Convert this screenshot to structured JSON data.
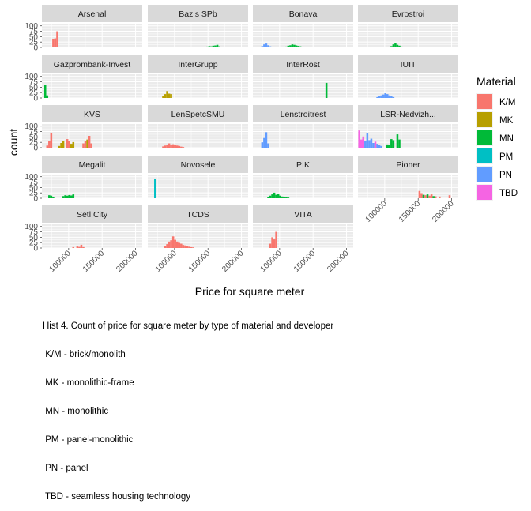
{
  "chart_data": {
    "type": "bar",
    "title": "",
    "xlabel": "Price for square meter",
    "ylabel": "count",
    "xlim": [
      60000,
      210000
    ],
    "ylim": [
      0,
      110
    ],
    "x_ticks": [
      100000,
      150000,
      200000
    ],
    "x_tick_labels": [
      "100000",
      "150000",
      "200000"
    ],
    "y_ticks": [
      0,
      25,
      50,
      75,
      100
    ],
    "y_tick_labels": [
      "0",
      "25",
      "50",
      "75",
      "100"
    ],
    "bin_width": 3000,
    "grid": true,
    "legend": {
      "title": "Material",
      "position": "right",
      "entries": [
        {
          "key": "K/M",
          "label": "K/M",
          "color": "#F8766D"
        },
        {
          "key": "MK",
          "label": "MK",
          "color": "#B79F00"
        },
        {
          "key": "MN",
          "label": "MN",
          "color": "#00BA38"
        },
        {
          "key": "PM",
          "label": "PM",
          "color": "#00BFC4"
        },
        {
          "key": "PN",
          "label": "PN",
          "color": "#619CFF"
        },
        {
          "key": "TBD",
          "label": "TBD",
          "color": "#F564E3"
        }
      ]
    },
    "panels": [
      {
        "name": "Arsenal",
        "bars": [
          {
            "x": 77000,
            "y": 38,
            "m": "K/M"
          },
          {
            "x": 80000,
            "y": 42,
            "m": "K/M"
          },
          {
            "x": 83000,
            "y": 75,
            "m": "K/M"
          }
        ]
      },
      {
        "name": "Bazis SPb",
        "bars": [
          {
            "x": 149000,
            "y": 4,
            "m": "MN"
          },
          {
            "x": 152000,
            "y": 6,
            "m": "MN"
          },
          {
            "x": 155000,
            "y": 5,
            "m": "MN"
          },
          {
            "x": 158000,
            "y": 8,
            "m": "MN"
          },
          {
            "x": 161000,
            "y": 9,
            "m": "MN"
          },
          {
            "x": 164000,
            "y": 12,
            "m": "MN"
          },
          {
            "x": 167000,
            "y": 5,
            "m": "MN"
          },
          {
            "x": 170000,
            "y": 3,
            "m": "MN"
          }
        ]
      },
      {
        "name": "Bonava",
        "bars": [
          {
            "x": 74000,
            "y": 6,
            "m": "PN"
          },
          {
            "x": 77000,
            "y": 14,
            "m": "PN"
          },
          {
            "x": 80000,
            "y": 18,
            "m": "PN"
          },
          {
            "x": 83000,
            "y": 10,
            "m": "PN"
          },
          {
            "x": 86000,
            "y": 5,
            "m": "PN"
          },
          {
            "x": 89000,
            "y": 3,
            "m": "PN"
          },
          {
            "x": 110000,
            "y": 4,
            "m": "MN"
          },
          {
            "x": 113000,
            "y": 8,
            "m": "MN"
          },
          {
            "x": 116000,
            "y": 10,
            "m": "MN"
          },
          {
            "x": 119000,
            "y": 14,
            "m": "MN"
          },
          {
            "x": 122000,
            "y": 12,
            "m": "MN"
          },
          {
            "x": 125000,
            "y": 9,
            "m": "MN"
          },
          {
            "x": 128000,
            "y": 7,
            "m": "MN"
          },
          {
            "x": 131000,
            "y": 5,
            "m": "MN"
          },
          {
            "x": 134000,
            "y": 3,
            "m": "MN"
          }
        ]
      },
      {
        "name": "Evrostroi",
        "bars": [
          {
            "x": 110000,
            "y": 6,
            "m": "MN"
          },
          {
            "x": 113000,
            "y": 14,
            "m": "MN"
          },
          {
            "x": 116000,
            "y": 20,
            "m": "MN"
          },
          {
            "x": 119000,
            "y": 12,
            "m": "MN"
          },
          {
            "x": 122000,
            "y": 8,
            "m": "MN"
          },
          {
            "x": 125000,
            "y": 4,
            "m": "MN"
          },
          {
            "x": 140000,
            "y": 3,
            "m": "MN"
          }
        ]
      },
      {
        "name": "Gazprombank-Invest",
        "bars": [
          {
            "x": 65000,
            "y": 62,
            "m": "MN"
          },
          {
            "x": 68000,
            "y": 12,
            "m": "MN"
          }
        ]
      },
      {
        "name": "InterGrupp",
        "bars": [
          {
            "x": 83000,
            "y": 10,
            "m": "MK"
          },
          {
            "x": 86000,
            "y": 18,
            "m": "MK"
          },
          {
            "x": 89000,
            "y": 32,
            "m": "MK"
          },
          {
            "x": 92000,
            "y": 20,
            "m": "MK"
          },
          {
            "x": 95000,
            "y": 18,
            "m": "MK"
          }
        ]
      },
      {
        "name": "InterRost",
        "bars": [
          {
            "x": 170000,
            "y": 70,
            "m": "MN"
          }
        ]
      },
      {
        "name": "IUIT",
        "bars": [
          {
            "x": 89000,
            "y": 4,
            "m": "PN"
          },
          {
            "x": 92000,
            "y": 8,
            "m": "PN"
          },
          {
            "x": 95000,
            "y": 12,
            "m": "PN"
          },
          {
            "x": 98000,
            "y": 16,
            "m": "PN"
          },
          {
            "x": 101000,
            "y": 22,
            "m": "PN"
          },
          {
            "x": 104000,
            "y": 18,
            "m": "PN"
          },
          {
            "x": 107000,
            "y": 12,
            "m": "PN"
          },
          {
            "x": 110000,
            "y": 8,
            "m": "PN"
          },
          {
            "x": 113000,
            "y": 4,
            "m": "PN"
          }
        ]
      },
      {
        "name": "KVS",
        "bars": [
          {
            "x": 68000,
            "y": 10,
            "m": "K/M"
          },
          {
            "x": 71000,
            "y": 30,
            "m": "K/M"
          },
          {
            "x": 74000,
            "y": 70,
            "m": "K/M"
          },
          {
            "x": 86000,
            "y": 8,
            "m": "MK"
          },
          {
            "x": 89000,
            "y": 22,
            "m": "MK"
          },
          {
            "x": 92000,
            "y": 30,
            "m": "MK"
          },
          {
            "x": 98000,
            "y": 40,
            "m": "K/M"
          },
          {
            "x": 101000,
            "y": 32,
            "m": "K/M"
          },
          {
            "x": 104000,
            "y": 18,
            "m": "MK"
          },
          {
            "x": 107000,
            "y": 26,
            "m": "MK"
          },
          {
            "x": 122000,
            "y": 20,
            "m": "K/M"
          },
          {
            "x": 125000,
            "y": 30,
            "m": "K/M"
          },
          {
            "x": 128000,
            "y": 38,
            "m": "MK"
          },
          {
            "x": 131000,
            "y": 55,
            "m": "K/M"
          },
          {
            "x": 134000,
            "y": 20,
            "m": "K/M"
          }
        ]
      },
      {
        "name": "LenSpetcSMU",
        "bars": [
          {
            "x": 83000,
            "y": 6,
            "m": "K/M"
          },
          {
            "x": 86000,
            "y": 10,
            "m": "K/M"
          },
          {
            "x": 89000,
            "y": 14,
            "m": "K/M"
          },
          {
            "x": 92000,
            "y": 20,
            "m": "K/M"
          },
          {
            "x": 95000,
            "y": 14,
            "m": "K/M"
          },
          {
            "x": 98000,
            "y": 16,
            "m": "K/M"
          },
          {
            "x": 101000,
            "y": 12,
            "m": "K/M"
          },
          {
            "x": 104000,
            "y": 10,
            "m": "K/M"
          },
          {
            "x": 107000,
            "y": 8,
            "m": "K/M"
          },
          {
            "x": 110000,
            "y": 5,
            "m": "K/M"
          },
          {
            "x": 113000,
            "y": 3,
            "m": "K/M"
          }
        ]
      },
      {
        "name": "Lenstroitrest",
        "bars": [
          {
            "x": 74000,
            "y": 25,
            "m": "PN"
          },
          {
            "x": 77000,
            "y": 45,
            "m": "PN"
          },
          {
            "x": 80000,
            "y": 72,
            "m": "PN"
          },
          {
            "x": 83000,
            "y": 20,
            "m": "PN"
          }
        ]
      },
      {
        "name": "LSR-Nedvizh...",
        "bars": [
          {
            "x": 62000,
            "y": 80,
            "m": "TBD"
          },
          {
            "x": 65000,
            "y": 38,
            "m": "TBD"
          },
          {
            "x": 68000,
            "y": 52,
            "m": "TBD"
          },
          {
            "x": 71000,
            "y": 30,
            "m": "PN"
          },
          {
            "x": 74000,
            "y": 68,
            "m": "PN"
          },
          {
            "x": 77000,
            "y": 35,
            "m": "PN"
          },
          {
            "x": 80000,
            "y": 42,
            "m": "PN"
          },
          {
            "x": 83000,
            "y": 22,
            "m": "PN"
          },
          {
            "x": 86000,
            "y": 28,
            "m": "TBD"
          },
          {
            "x": 89000,
            "y": 18,
            "m": "PN"
          },
          {
            "x": 92000,
            "y": 12,
            "m": "PN"
          },
          {
            "x": 95000,
            "y": 8,
            "m": "PN"
          },
          {
            "x": 104000,
            "y": 15,
            "m": "MN"
          },
          {
            "x": 107000,
            "y": 12,
            "m": "MN"
          },
          {
            "x": 110000,
            "y": 40,
            "m": "MN"
          },
          {
            "x": 113000,
            "y": 35,
            "m": "MN"
          },
          {
            "x": 119000,
            "y": 62,
            "m": "MN"
          },
          {
            "x": 122000,
            "y": 38,
            "m": "MN"
          }
        ]
      },
      {
        "name": "Megalit",
        "bars": [
          {
            "x": 71000,
            "y": 14,
            "m": "MN"
          },
          {
            "x": 74000,
            "y": 12,
            "m": "MN"
          },
          {
            "x": 77000,
            "y": 6,
            "m": "MN"
          },
          {
            "x": 92000,
            "y": 10,
            "m": "MN"
          },
          {
            "x": 95000,
            "y": 14,
            "m": "MN"
          },
          {
            "x": 98000,
            "y": 12,
            "m": "MN"
          },
          {
            "x": 101000,
            "y": 15,
            "m": "MN"
          },
          {
            "x": 104000,
            "y": 13,
            "m": "MN"
          },
          {
            "x": 107000,
            "y": 18,
            "m": "MN"
          }
        ]
      },
      {
        "name": "Novosele",
        "bars": [
          {
            "x": 71000,
            "y": 88,
            "m": "PM"
          }
        ]
      },
      {
        "name": "PIK",
        "bars": [
          {
            "x": 83000,
            "y": 6,
            "m": "MN"
          },
          {
            "x": 86000,
            "y": 12,
            "m": "MN"
          },
          {
            "x": 89000,
            "y": 18,
            "m": "MN"
          },
          {
            "x": 92000,
            "y": 26,
            "m": "MN"
          },
          {
            "x": 95000,
            "y": 16,
            "m": "MN"
          },
          {
            "x": 98000,
            "y": 20,
            "m": "MN"
          },
          {
            "x": 101000,
            "y": 12,
            "m": "MN"
          },
          {
            "x": 104000,
            "y": 8,
            "m": "MN"
          },
          {
            "x": 107000,
            "y": 6,
            "m": "MN"
          },
          {
            "x": 110000,
            "y": 4,
            "m": "MN"
          },
          {
            "x": 113000,
            "y": 3,
            "m": "MN"
          }
        ]
      },
      {
        "name": "Pioner",
        "bars": [
          {
            "x": 152000,
            "y": 34,
            "m": "K/M"
          },
          {
            "x": 155000,
            "y": 24,
            "m": "K/M"
          },
          {
            "x": 158000,
            "y": 16,
            "m": "MN"
          },
          {
            "x": 161000,
            "y": 14,
            "m": "K/M"
          },
          {
            "x": 164000,
            "y": 18,
            "m": "MN"
          },
          {
            "x": 167000,
            "y": 12,
            "m": "K/M"
          },
          {
            "x": 170000,
            "y": 18,
            "m": "K/M"
          },
          {
            "x": 173000,
            "y": 10,
            "m": "MN"
          },
          {
            "x": 176000,
            "y": 9,
            "m": "K/M"
          },
          {
            "x": 182000,
            "y": 8,
            "m": "K/M"
          },
          {
            "x": 197000,
            "y": 14,
            "m": "K/M"
          }
        ]
      },
      {
        "name": "Setl City",
        "bars": [
          {
            "x": 107000,
            "y": 4,
            "m": "K/M"
          },
          {
            "x": 113000,
            "y": 7,
            "m": "K/M"
          },
          {
            "x": 116000,
            "y": 5,
            "m": "K/M"
          },
          {
            "x": 119000,
            "y": 15,
            "m": "K/M"
          },
          {
            "x": 122000,
            "y": 4,
            "m": "K/M"
          }
        ]
      },
      {
        "name": "TCDS",
        "bars": [
          {
            "x": 86000,
            "y": 10,
            "m": "K/M"
          },
          {
            "x": 89000,
            "y": 18,
            "m": "K/M"
          },
          {
            "x": 92000,
            "y": 30,
            "m": "K/M"
          },
          {
            "x": 95000,
            "y": 36,
            "m": "K/M"
          },
          {
            "x": 98000,
            "y": 54,
            "m": "K/M"
          },
          {
            "x": 101000,
            "y": 38,
            "m": "K/M"
          },
          {
            "x": 104000,
            "y": 30,
            "m": "K/M"
          },
          {
            "x": 107000,
            "y": 24,
            "m": "K/M"
          },
          {
            "x": 110000,
            "y": 20,
            "m": "K/M"
          },
          {
            "x": 113000,
            "y": 14,
            "m": "K/M"
          },
          {
            "x": 116000,
            "y": 12,
            "m": "K/M"
          },
          {
            "x": 119000,
            "y": 8,
            "m": "K/M"
          },
          {
            "x": 122000,
            "y": 6,
            "m": "K/M"
          },
          {
            "x": 125000,
            "y": 4,
            "m": "K/M"
          },
          {
            "x": 128000,
            "y": 3,
            "m": "K/M"
          }
        ]
      },
      {
        "name": "VITA",
        "bars": [
          {
            "x": 86000,
            "y": 20,
            "m": "K/M"
          },
          {
            "x": 89000,
            "y": 50,
            "m": "K/M"
          },
          {
            "x": 92000,
            "y": 40,
            "m": "K/M"
          },
          {
            "x": 95000,
            "y": 75,
            "m": "K/M"
          }
        ]
      }
    ]
  },
  "caption": {
    "lines": [
      "Hist 4. Count of price for square meter by type of material and developer",
      " K/M - brick/monolith",
      " MK - monolithic-frame",
      " MN - monolithic",
      " PM - panel-monolithic",
      " PN - panel",
      " TBD - seamless housing technology"
    ]
  }
}
